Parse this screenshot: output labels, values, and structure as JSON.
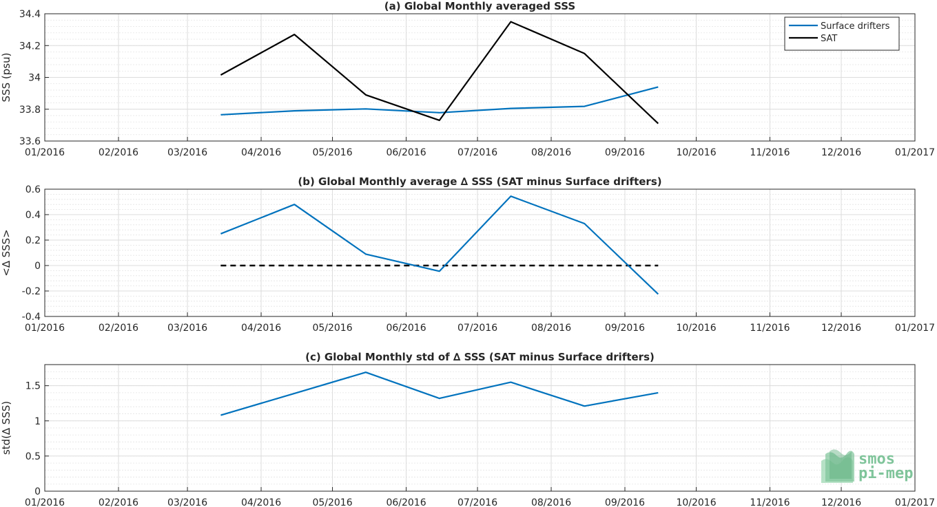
{
  "chart_data": [
    {
      "type": "line",
      "title": "(a) Global Monthly averaged SSS",
      "ylabel": "SSS (psu)",
      "xlabel": "",
      "xlim": [
        "2016-01-01",
        "2017-01-01"
      ],
      "ylim": [
        33.6,
        34.4
      ],
      "yticks": [
        33.6,
        33.8,
        34,
        34.2,
        34.4
      ],
      "ytick_labels": [
        "33.6",
        "33.8",
        "34",
        "34.2",
        "34.4"
      ],
      "xtick_labels": [
        "01/2016",
        "02/2016",
        "03/2016",
        "04/2016",
        "05/2016",
        "06/2016",
        "07/2016",
        "08/2016",
        "09/2016",
        "10/2016",
        "11/2016",
        "12/2016",
        "01/2017"
      ],
      "grid": true,
      "legend": "top-right",
      "x": [
        "2016-03-15",
        "2016-04-15",
        "2016-05-15",
        "2016-06-15",
        "2016-07-15",
        "2016-08-15",
        "2016-09-15"
      ],
      "series": [
        {
          "name": "Surface drifters",
          "color": "#0072bd",
          "values": [
            33.765,
            33.79,
            33.802,
            33.778,
            33.805,
            33.818,
            33.94
          ]
        },
        {
          "name": "SAT",
          "color": "#000000",
          "values": [
            34.015,
            34.27,
            33.89,
            33.73,
            34.35,
            34.15,
            33.71
          ]
        }
      ]
    },
    {
      "type": "line",
      "title": "(b) Global Monthly average ∆ SSS (SAT minus Surface drifters)",
      "ylabel": "<∆ SSS>",
      "xlabel": "",
      "xlim": [
        "2016-01-01",
        "2017-01-01"
      ],
      "ylim": [
        -0.4,
        0.6
      ],
      "yticks": [
        -0.4,
        -0.2,
        0,
        0.2,
        0.4,
        0.6
      ],
      "ytick_labels": [
        "-0.4",
        "-0.2",
        "0",
        "0.2",
        "0.4",
        "0.6"
      ],
      "xtick_labels": [
        "01/2016",
        "02/2016",
        "03/2016",
        "04/2016",
        "05/2016",
        "06/2016",
        "07/2016",
        "08/2016",
        "09/2016",
        "10/2016",
        "11/2016",
        "12/2016",
        "01/2017"
      ],
      "grid": true,
      "x": [
        "2016-03-15",
        "2016-04-15",
        "2016-05-15",
        "2016-06-15",
        "2016-07-15",
        "2016-08-15",
        "2016-09-15"
      ],
      "series": [
        {
          "color": "#0072bd",
          "values": [
            0.25,
            0.48,
            0.09,
            -0.045,
            0.545,
            0.33,
            -0.225
          ]
        }
      ],
      "reference_line": {
        "y": 0,
        "x_range": [
          "2016-03-15",
          "2016-09-15"
        ],
        "color": "#000000",
        "style": "dashed"
      }
    },
    {
      "type": "line",
      "title": "(c) Global Monthly std of ∆ SSS (SAT minus Surface drifters)",
      "ylabel": "std(∆ SSS)",
      "xlabel": "",
      "xlim": [
        "2016-01-01",
        "2017-01-01"
      ],
      "ylim": [
        0,
        1.8
      ],
      "yticks": [
        0,
        0.5,
        1,
        1.5
      ],
      "ytick_labels": [
        "0",
        "0.5",
        "1",
        "1.5"
      ],
      "xtick_labels": [
        "01/2016",
        "02/2016",
        "03/2016",
        "04/2016",
        "05/2016",
        "06/2016",
        "07/2016",
        "08/2016",
        "09/2016",
        "10/2016",
        "11/2016",
        "12/2016",
        "01/2017"
      ],
      "grid": true,
      "x": [
        "2016-03-15",
        "2016-04-15",
        "2016-05-15",
        "2016-06-15",
        "2016-07-15",
        "2016-08-15",
        "2016-09-15"
      ],
      "series": [
        {
          "color": "#0072bd",
          "values": [
            1.08,
            1.39,
            1.69,
            1.32,
            1.55,
            1.21,
            1.4
          ]
        }
      ]
    }
  ],
  "logo": {
    "line1": "smos",
    "line2": "pi-mep",
    "color": "#7fc49a"
  }
}
